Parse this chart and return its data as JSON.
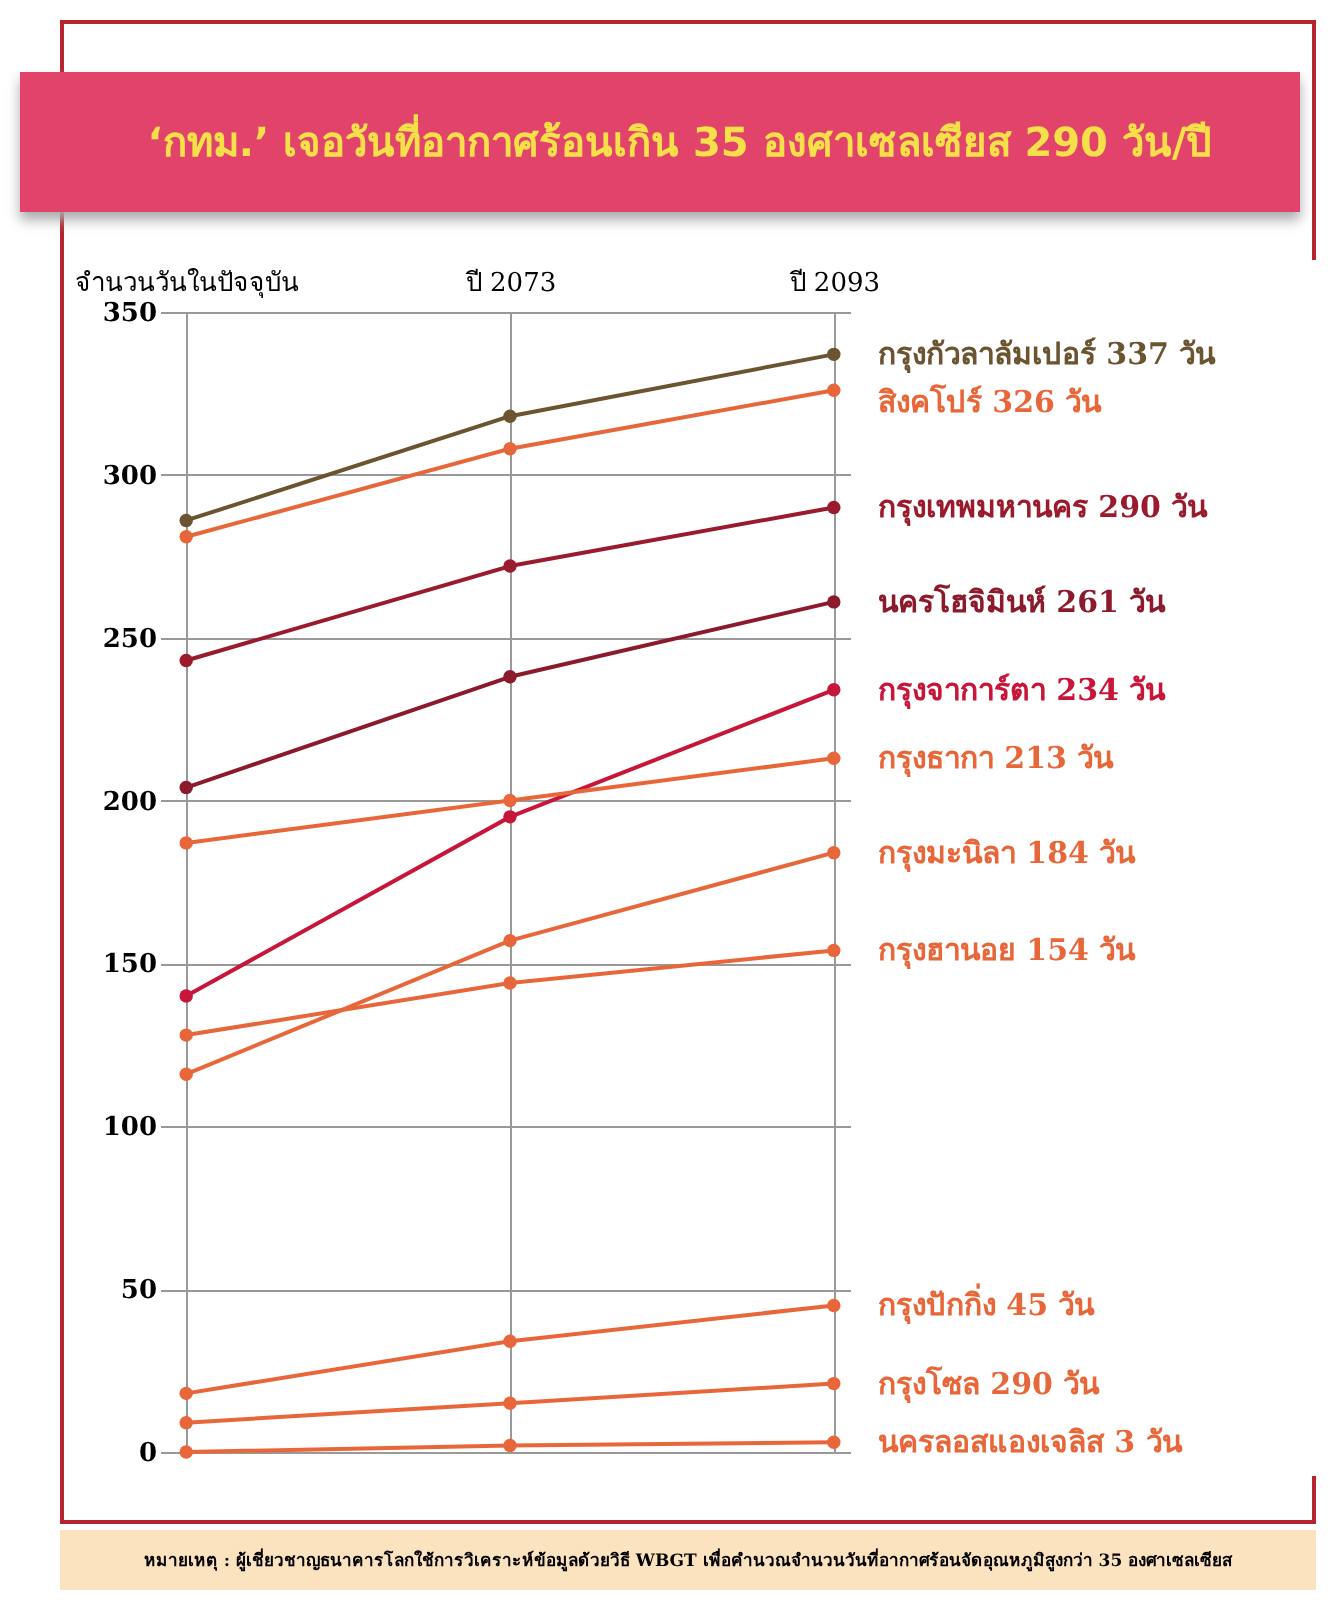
{
  "chart_data": {
    "type": "line",
    "title": "‘กทม.’ เจอวันที่อากาศร้อนเกิน 35 องศาเซลเซียส 290 วัน/ปี",
    "categories": [
      "จำนวนวันในปัจจุบัน",
      "ปี 2073",
      "ปี 2093"
    ],
    "series": [
      {
        "name": "กรุงกัวลาลัมเปอร์ 337 วัน",
        "color": "#6b5430",
        "values": [
          286,
          318,
          337
        ]
      },
      {
        "name": "สิงคโปร์ 326 วัน",
        "color": "#e8673a",
        "values": [
          281,
          308,
          326
        ]
      },
      {
        "name": "กรุงเทพมหานคร 290 วัน",
        "color": "#9b1b2e",
        "values": [
          243,
          272,
          290
        ]
      },
      {
        "name": "นครโฮจิมินห์ 261 วัน",
        "color": "#8b1a2c",
        "values": [
          204,
          238,
          261
        ]
      },
      {
        "name": "กรุงจาการ์ตา 234 วัน",
        "color": "#c8163a",
        "values": [
          140,
          195,
          234
        ]
      },
      {
        "name": "กรุงธากา 213 วัน",
        "color": "#e8673a",
        "values": [
          187,
          200,
          213
        ]
      },
      {
        "name": "กรุงมะนิลา 184 วัน",
        "color": "#e8673a",
        "values": [
          116,
          157,
          184
        ]
      },
      {
        "name": "กรุงฮานอย 154 วัน",
        "color": "#e8673a",
        "values": [
          128,
          144,
          154
        ]
      },
      {
        "name": "กรุงปักกิ่ง 45 วัน",
        "color": "#e8673a",
        "values": [
          18,
          34,
          45
        ]
      },
      {
        "name": "กรุงโซล 290 วัน",
        "color": "#e8673a",
        "values": [
          9,
          15,
          21
        ]
      },
      {
        "name": "นครลอสแองเจลิส 3 วัน",
        "color": "#e8673a",
        "values": [
          0,
          2,
          3
        ]
      }
    ],
    "ylim": [
      0,
      350
    ],
    "yticks": [
      0,
      50,
      100,
      150,
      200,
      250,
      300,
      350
    ],
    "grid": true,
    "marker": "circle",
    "line_style": "solid",
    "annotations": [
      "หมายเหตุ : ผู้เชี่ยวชาญธนาคารโลกใช้การวิเคราะห์ข้อมูลด้วยวิธี WBGT เพื่อคำนวณจำนวนวันที่อากาศร้อนจัดอุณหภูมิสูงกว่า 35 องศาเซลเซียส"
    ]
  }
}
